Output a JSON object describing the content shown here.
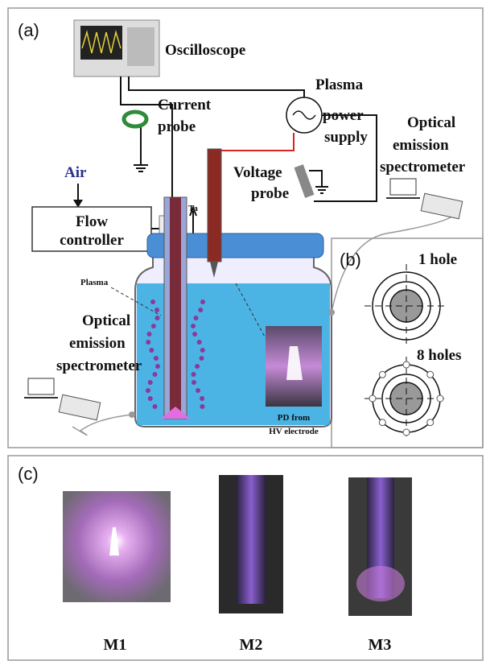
{
  "panel_a": {
    "label": "(a)",
    "oscilloscope": "Oscilloscope",
    "current_probe": [
      "Current",
      "probe"
    ],
    "power_supply": [
      "Plasma",
      "power",
      "supply"
    ],
    "oes_right": [
      "Optical",
      "emission",
      "spectrometer"
    ],
    "air": "Air",
    "flow_controller": [
      "Flow",
      "controller"
    ],
    "voltage_probe": [
      "Voltage",
      "probe"
    ],
    "ta": "Ta",
    "plasma": "Plasma",
    "oes_left": [
      "Optical",
      "emission",
      "spectrometer"
    ],
    "pd_caption": [
      "PD from",
      "HV electrode"
    ]
  },
  "panel_b": {
    "label": "(b)",
    "one_hole": "1 hole",
    "eight_holes": "8 holes"
  },
  "panel_c": {
    "label": "(c)",
    "samples": [
      "M1",
      "M2",
      "M3"
    ]
  }
}
